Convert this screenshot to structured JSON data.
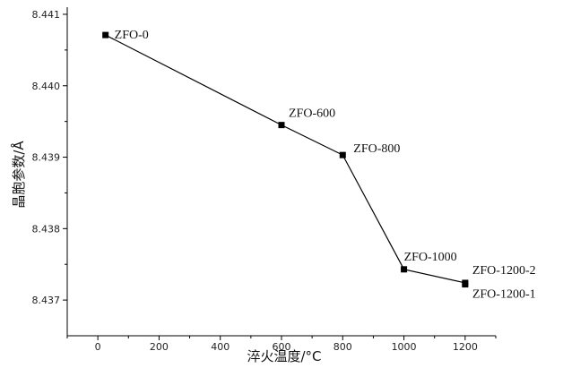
{
  "chart_data": {
    "type": "line",
    "title": "",
    "xlabel": "淬火温度/°C",
    "ylabel": "晶胞参数/Å",
    "xlim": [
      -100,
      1300
    ],
    "ylim": [
      8.4365,
      8.4411
    ],
    "xticks": [
      0,
      200,
      400,
      600,
      800,
      1000,
      1200
    ],
    "xtick_labels": [
      "0",
      "200",
      "400",
      "600",
      "800",
      "1000",
      "1200"
    ],
    "yticks": [
      8.437,
      8.438,
      8.439,
      8.44,
      8.441
    ],
    "ytick_labels": [
      "8.437",
      "8.438",
      "8.439",
      "8.440",
      "8.441"
    ],
    "grid": false,
    "series": [
      {
        "x": [
          25,
          600,
          800,
          1000,
          1200,
          1200
        ],
        "y": [
          8.44071,
          8.43945,
          8.43903,
          8.43743,
          8.43724,
          8.43722
        ]
      }
    ],
    "point_labels": [
      "ZFO-0",
      "ZFO-600",
      "ZFO-800",
      "ZFO-1000",
      "ZFO-1200-2",
      "ZFO-1200-1"
    ]
  }
}
